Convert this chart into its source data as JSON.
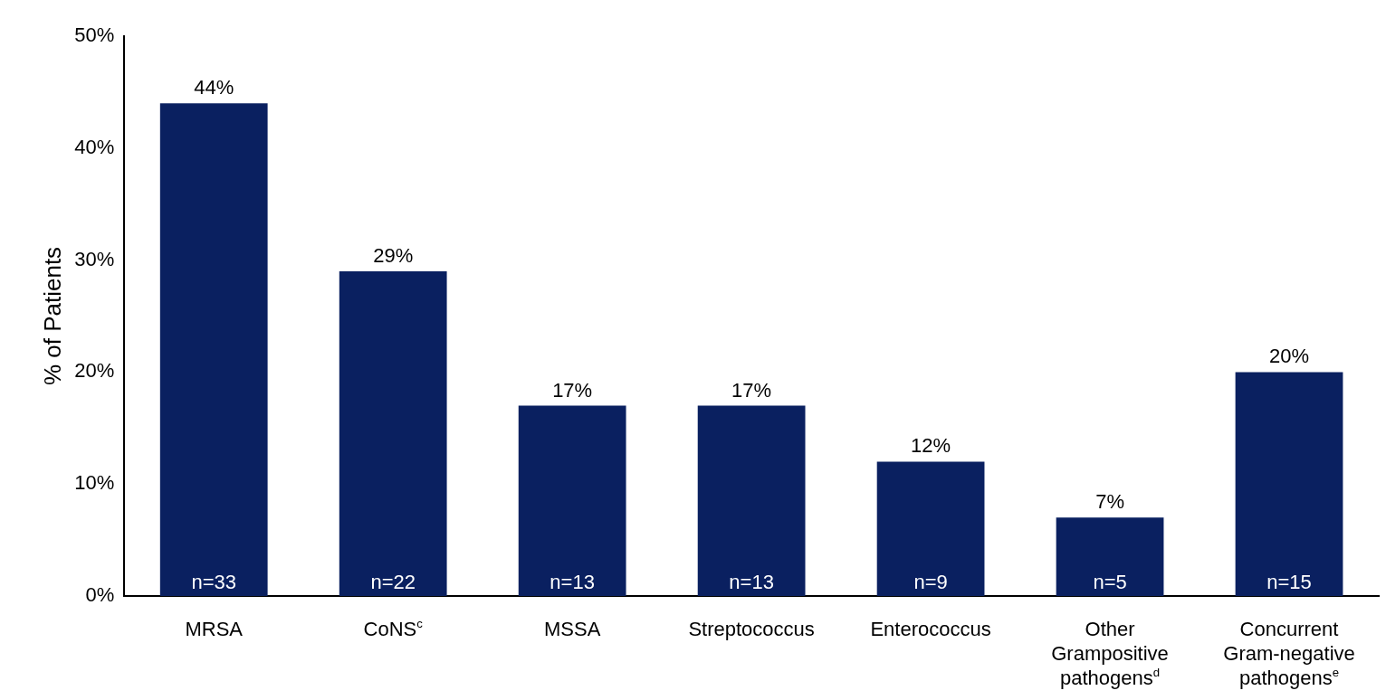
{
  "chart_data": {
    "type": "bar",
    "ylabel": "% of Patients",
    "categories": [
      "MRSA",
      "CoNS$^{c}$",
      "MSSA",
      "Streptococcus",
      "Enterococcus",
      "Other Grampositive pathogens$^{d}$",
      "Concurrent Gram-negative pathogens$^{e}$"
    ],
    "values": [
      44,
      29,
      17,
      17,
      12,
      7,
      20
    ],
    "value_labels": [
      "44%",
      "29%",
      "17%",
      "17%",
      "12%",
      "7%",
      "20%"
    ],
    "color": "#0a2060",
    "ylim": [
      0,
      50
    ],
    "yticks": [
      {
        "value": 0,
        "label": "0%"
      },
      {
        "value": 10,
        "label": "10%"
      },
      {
        "value": 20,
        "label": "20%"
      },
      {
        "value": 30,
        "label": "30%"
      },
      {
        "value": 40,
        "label": "40%"
      },
      {
        "value": 50,
        "label": "50%"
      }
    ],
    "grid": false,
    "legend": false,
    "annotations": [
      {
        "text": "n=33",
        "x": "MRSA",
        "y": 0
      },
      {
        "text": "n=22",
        "x": "CoNS$^{c}$",
        "y": 0
      },
      {
        "text": "n=13",
        "x": "MSSA",
        "y": 0
      },
      {
        "text": "n=13",
        "x": "Streptococcus",
        "y": 0
      },
      {
        "text": "n=9",
        "x": "Enterococcus",
        "y": 0
      },
      {
        "text": "n=5",
        "x": "Other Grampositive pathogens$^{d}$",
        "y": 0
      },
      {
        "text": "n=15",
        "x": "Concurrent Gram-negative pathogens$^{e}$",
        "y": 0
      }
    ]
  }
}
